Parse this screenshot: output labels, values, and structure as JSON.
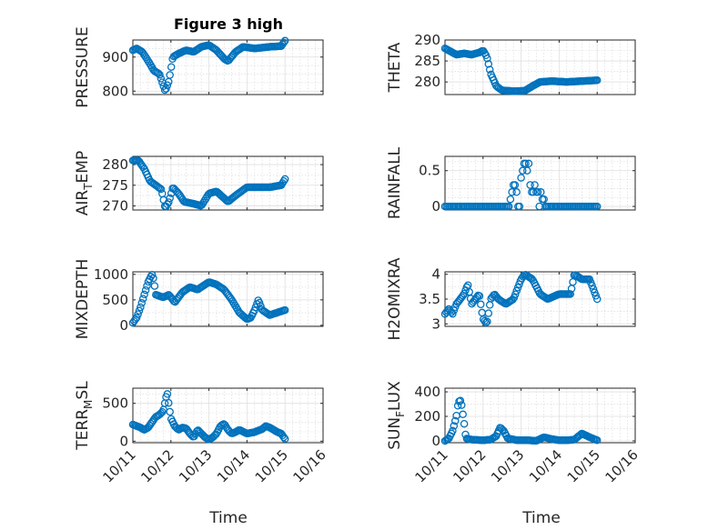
{
  "figure_title": "Figure 3 high",
  "colors": {
    "marker": "#0072bd",
    "axis": "#262626",
    "grid": "#dfdfdf"
  },
  "chart_data": [
    {
      "type": "scatter",
      "ylabel": "PRESSURE",
      "ylim": [
        790,
        950
      ],
      "yticks": [
        800,
        900
      ],
      "ytick_labels": [
        "800",
        "900"
      ],
      "minor_y": [
        825,
        850,
        875,
        925
      ],
      "xlim": [
        0,
        5
      ],
      "xticks": [
        0,
        1,
        2,
        3,
        4,
        5
      ],
      "xtick_labels": [],
      "anchors": [
        [
          0,
          920
        ],
        [
          0.1,
          925
        ],
        [
          0.25,
          915
        ],
        [
          0.45,
          880
        ],
        [
          0.55,
          860
        ],
        [
          0.7,
          850
        ],
        [
          0.85,
          800
        ],
        [
          0.95,
          830
        ],
        [
          1.05,
          900
        ],
        [
          1.2,
          910
        ],
        [
          1.4,
          920
        ],
        [
          1.6,
          915
        ],
        [
          1.8,
          930
        ],
        [
          2.0,
          935
        ],
        [
          2.2,
          920
        ],
        [
          2.4,
          895
        ],
        [
          2.5,
          888
        ],
        [
          2.7,
          915
        ],
        [
          2.9,
          930
        ],
        [
          3.2,
          925
        ],
        [
          3.6,
          930
        ],
        [
          3.9,
          932
        ],
        [
          4.0,
          948
        ]
      ],
      "count": 120
    },
    {
      "type": "scatter",
      "ylabel": "THETA",
      "ylim": [
        277,
        290
      ],
      "yticks": [
        280,
        285,
        290
      ],
      "ytick_labels": [
        "280",
        "285",
        "290"
      ],
      "minor_y": [
        282.5,
        287.5
      ],
      "xlim": [
        0,
        5
      ],
      "xticks": [
        0,
        1,
        2,
        3,
        4,
        5
      ],
      "xtick_labels": [],
      "anchors": [
        [
          0,
          288
        ],
        [
          0.1,
          287.5
        ],
        [
          0.3,
          286.5
        ],
        [
          0.5,
          286.8
        ],
        [
          0.7,
          286.5
        ],
        [
          0.9,
          287
        ],
        [
          1.0,
          287.5
        ],
        [
          1.1,
          286
        ],
        [
          1.2,
          282
        ],
        [
          1.35,
          279
        ],
        [
          1.5,
          278
        ],
        [
          1.8,
          277.8
        ],
        [
          2.1,
          277.9
        ],
        [
          2.3,
          279
        ],
        [
          2.5,
          280
        ],
        [
          2.8,
          280.2
        ],
        [
          3.2,
          280
        ],
        [
          3.6,
          280.2
        ],
        [
          4.0,
          280.4
        ]
      ],
      "count": 120
    },
    {
      "type": "scatter",
      "ylabel": "AIR_T_EMP",
      "ylim": [
        269,
        282
      ],
      "yticks": [
        270,
        275,
        280
      ],
      "ytick_labels": [
        "270",
        "275",
        "280"
      ],
      "minor_y": [
        272.5,
        277.5
      ],
      "xlim": [
        0,
        5
      ],
      "xticks": [
        0,
        1,
        2,
        3,
        4,
        5
      ],
      "xtick_labels": [],
      "anchors": [
        [
          0,
          281
        ],
        [
          0.15,
          281
        ],
        [
          0.3,
          279
        ],
        [
          0.45,
          276
        ],
        [
          0.6,
          275
        ],
        [
          0.75,
          274
        ],
        [
          0.85,
          269.5
        ],
        [
          0.95,
          271
        ],
        [
          1.05,
          274.5
        ],
        [
          1.2,
          273
        ],
        [
          1.35,
          271
        ],
        [
          1.6,
          270.5
        ],
        [
          1.8,
          270
        ],
        [
          2.0,
          273
        ],
        [
          2.2,
          273.5
        ],
        [
          2.5,
          271
        ],
        [
          2.7,
          272.5
        ],
        [
          3.0,
          274.5
        ],
        [
          3.3,
          274.5
        ],
        [
          3.6,
          274.5
        ],
        [
          3.9,
          275
        ],
        [
          4.0,
          276.5
        ]
      ],
      "count": 120
    },
    {
      "type": "scatter",
      "ylabel": "RAINFALL",
      "ylim": [
        -0.05,
        0.7
      ],
      "yticks": [
        0,
        0.5
      ],
      "ytick_labels": [
        "0",
        "0.5"
      ],
      "minor_y": [
        0.125,
        0.25,
        0.375,
        0.625
      ],
      "xlim": [
        0,
        5
      ],
      "xticks": [
        0,
        1,
        2,
        3,
        4,
        5
      ],
      "xtick_labels": [],
      "points": [
        [
          0,
          0
        ],
        [
          0.04,
          0
        ],
        [
          0.08,
          0
        ],
        [
          0.12,
          0
        ],
        [
          0.16,
          0
        ],
        [
          0.2,
          0
        ],
        [
          0.24,
          0
        ],
        [
          0.28,
          0
        ],
        [
          0.32,
          0
        ],
        [
          0.36,
          0
        ],
        [
          0.4,
          0
        ],
        [
          0.44,
          0
        ],
        [
          0.48,
          0
        ],
        [
          0.52,
          0
        ],
        [
          0.56,
          0
        ],
        [
          0.6,
          0
        ],
        [
          0.64,
          0
        ],
        [
          0.68,
          0
        ],
        [
          0.72,
          0
        ],
        [
          0.76,
          0
        ],
        [
          0.8,
          0
        ],
        [
          0.84,
          0
        ],
        [
          0.88,
          0
        ],
        [
          0.92,
          0
        ],
        [
          0.96,
          0
        ],
        [
          1.0,
          0
        ],
        [
          1.04,
          0
        ],
        [
          1.08,
          0
        ],
        [
          1.12,
          0
        ],
        [
          1.16,
          0
        ],
        [
          1.2,
          0
        ],
        [
          1.24,
          0
        ],
        [
          1.28,
          0
        ],
        [
          1.32,
          0
        ],
        [
          1.36,
          0
        ],
        [
          1.4,
          0
        ],
        [
          1.44,
          0
        ],
        [
          1.48,
          0
        ],
        [
          1.52,
          0
        ],
        [
          1.56,
          0
        ],
        [
          1.6,
          0
        ],
        [
          1.64,
          0
        ],
        [
          1.68,
          0
        ],
        [
          1.72,
          0.1
        ],
        [
          1.76,
          0.2
        ],
        [
          1.8,
          0.3
        ],
        [
          1.84,
          0.3
        ],
        [
          1.88,
          0.2
        ],
        [
          1.92,
          0
        ],
        [
          1.96,
          0
        ],
        [
          2.0,
          0.4
        ],
        [
          2.04,
          0.5
        ],
        [
          2.08,
          0.6
        ],
        [
          2.12,
          0.6
        ],
        [
          2.16,
          0.5
        ],
        [
          2.2,
          0.6
        ],
        [
          2.24,
          0.3
        ],
        [
          2.28,
          0.2
        ],
        [
          2.32,
          0.2
        ],
        [
          2.36,
          0.3
        ],
        [
          2.4,
          0.2
        ],
        [
          2.44,
          0.2
        ],
        [
          2.48,
          0
        ],
        [
          2.52,
          0.2
        ],
        [
          2.56,
          0.1
        ],
        [
          2.6,
          0.1
        ],
        [
          2.64,
          0
        ],
        [
          2.68,
          0
        ],
        [
          2.72,
          0
        ],
        [
          2.76,
          0
        ],
        [
          2.8,
          0
        ],
        [
          2.84,
          0
        ],
        [
          2.88,
          0
        ],
        [
          2.92,
          0
        ],
        [
          2.96,
          0
        ],
        [
          3.0,
          0
        ],
        [
          3.04,
          0
        ],
        [
          3.08,
          0
        ],
        [
          3.12,
          0
        ],
        [
          3.16,
          0
        ],
        [
          3.2,
          0
        ],
        [
          3.24,
          0
        ],
        [
          3.28,
          0
        ],
        [
          3.32,
          0
        ],
        [
          3.36,
          0
        ],
        [
          3.4,
          0
        ],
        [
          3.44,
          0
        ],
        [
          3.48,
          0
        ],
        [
          3.52,
          0
        ],
        [
          3.56,
          0
        ],
        [
          3.6,
          0
        ],
        [
          3.64,
          0
        ],
        [
          3.68,
          0
        ],
        [
          3.72,
          0
        ],
        [
          3.76,
          0
        ],
        [
          3.8,
          0
        ],
        [
          3.84,
          0
        ],
        [
          3.88,
          0
        ],
        [
          3.92,
          0
        ],
        [
          3.96,
          0
        ],
        [
          4.0,
          0
        ]
      ]
    },
    {
      "type": "scatter",
      "ylabel": "MIXDEPTH",
      "ylim": [
        -20,
        1050
      ],
      "yticks": [
        0,
        500,
        1000
      ],
      "ytick_labels": [
        "0",
        "500",
        "1000"
      ],
      "minor_y": [
        250,
        750
      ],
      "xlim": [
        0,
        5
      ],
      "xticks": [
        0,
        1,
        2,
        3,
        4,
        5
      ],
      "xtick_labels": [],
      "anchors": [
        [
          0,
          50
        ],
        [
          0.1,
          150
        ],
        [
          0.2,
          350
        ],
        [
          0.3,
          600
        ],
        [
          0.4,
          850
        ],
        [
          0.5,
          1000
        ],
        [
          0.55,
          900
        ],
        [
          0.6,
          600
        ],
        [
          0.8,
          550
        ],
        [
          0.95,
          600
        ],
        [
          1.1,
          450
        ],
        [
          1.3,
          650
        ],
        [
          1.5,
          750
        ],
        [
          1.7,
          700
        ],
        [
          1.9,
          800
        ],
        [
          2.0,
          850
        ],
        [
          2.2,
          800
        ],
        [
          2.4,
          700
        ],
        [
          2.6,
          500
        ],
        [
          2.8,
          250
        ],
        [
          3.0,
          120
        ],
        [
          3.1,
          150
        ],
        [
          3.2,
          300
        ],
        [
          3.3,
          500
        ],
        [
          3.4,
          300
        ],
        [
          3.6,
          200
        ],
        [
          3.8,
          250
        ],
        [
          4.0,
          300
        ]
      ],
      "count": 120
    },
    {
      "type": "scatter",
      "ylabel": "H2OMIXRA",
      "ylim": [
        2.95,
        4.05
      ],
      "yticks": [
        3,
        3.5,
        4
      ],
      "ytick_labels": [
        "3",
        "3.5",
        "4"
      ],
      "minor_y": [
        3.25,
        3.75
      ],
      "xlim": [
        0,
        5
      ],
      "xticks": [
        0,
        1,
        2,
        3,
        4,
        5
      ],
      "xtick_labels": [],
      "anchors": [
        [
          0,
          3.2
        ],
        [
          0.1,
          3.3
        ],
        [
          0.2,
          3.2
        ],
        [
          0.3,
          3.4
        ],
        [
          0.5,
          3.6
        ],
        [
          0.6,
          3.8
        ],
        [
          0.7,
          3.4
        ],
        [
          0.8,
          3.5
        ],
        [
          0.9,
          3.6
        ],
        [
          1.0,
          3.1
        ],
        [
          1.1,
          3.0
        ],
        [
          1.2,
          3.5
        ],
        [
          1.3,
          3.6
        ],
        [
          1.4,
          3.5
        ],
        [
          1.6,
          3.4
        ],
        [
          1.8,
          3.5
        ],
        [
          2.0,
          3.9
        ],
        [
          2.1,
          4.0
        ],
        [
          2.3,
          3.9
        ],
        [
          2.5,
          3.6
        ],
        [
          2.7,
          3.5
        ],
        [
          3.0,
          3.6
        ],
        [
          3.3,
          3.6
        ],
        [
          3.4,
          4.0
        ],
        [
          3.6,
          3.9
        ],
        [
          3.8,
          3.9
        ],
        [
          3.9,
          3.7
        ],
        [
          4.0,
          3.5
        ]
      ],
      "count": 120
    },
    {
      "type": "scatter",
      "ylabel": "TERR_M_SL",
      "ylim": [
        -20,
        700
      ],
      "yticks": [
        0,
        500
      ],
      "ytick_labels": [
        "0",
        "500"
      ],
      "minor_y": [
        125,
        250,
        375,
        625
      ],
      "xlim": [
        0,
        5
      ],
      "xticks": [
        0,
        1,
        2,
        3,
        4,
        5
      ],
      "xtick_labels": [
        "10/11",
        "10/12",
        "10/13",
        "10/14",
        "10/15",
        "10/16"
      ],
      "anchors": [
        [
          0,
          220
        ],
        [
          0.1,
          200
        ],
        [
          0.2,
          180
        ],
        [
          0.3,
          150
        ],
        [
          0.4,
          180
        ],
        [
          0.5,
          250
        ],
        [
          0.6,
          320
        ],
        [
          0.7,
          350
        ],
        [
          0.8,
          400
        ],
        [
          0.9,
          650
        ],
        [
          1.0,
          300
        ],
        [
          1.1,
          200
        ],
        [
          1.2,
          150
        ],
        [
          1.3,
          180
        ],
        [
          1.4,
          170
        ],
        [
          1.5,
          100
        ],
        [
          1.6,
          50
        ],
        [
          1.7,
          150
        ],
        [
          1.8,
          100
        ],
        [
          1.9,
          50
        ],
        [
          2.0,
          20
        ],
        [
          2.1,
          50
        ],
        [
          2.2,
          100
        ],
        [
          2.3,
          200
        ],
        [
          2.4,
          230
        ],
        [
          2.5,
          150
        ],
        [
          2.6,
          100
        ],
        [
          2.7,
          120
        ],
        [
          2.8,
          150
        ],
        [
          3.0,
          100
        ],
        [
          3.2,
          120
        ],
        [
          3.4,
          160
        ],
        [
          3.5,
          200
        ],
        [
          3.6,
          180
        ],
        [
          3.8,
          120
        ],
        [
          3.9,
          100
        ],
        [
          4.0,
          30
        ]
      ],
      "count": 120
    },
    {
      "type": "scatter",
      "ylabel": "SUN_F_LUX",
      "ylim": [
        -15,
        430
      ],
      "yticks": [
        0,
        200,
        400
      ],
      "ytick_labels": [
        "0",
        "200",
        "400"
      ],
      "minor_y": [
        100,
        300
      ],
      "xlim": [
        0,
        5
      ],
      "xticks": [
        0,
        1,
        2,
        3,
        4,
        5
      ],
      "xtick_labels": [
        "10/11",
        "10/12",
        "10/13",
        "10/14",
        "10/15",
        "10/16"
      ],
      "anchors": [
        [
          0,
          0
        ],
        [
          0.1,
          20
        ],
        [
          0.2,
          80
        ],
        [
          0.3,
          200
        ],
        [
          0.35,
          320
        ],
        [
          0.42,
          330
        ],
        [
          0.5,
          150
        ],
        [
          0.55,
          20
        ],
        [
          0.7,
          10
        ],
        [
          1.0,
          5
        ],
        [
          1.2,
          10
        ],
        [
          1.35,
          40
        ],
        [
          1.45,
          110
        ],
        [
          1.55,
          80
        ],
        [
          1.65,
          20
        ],
        [
          1.9,
          5
        ],
        [
          2.2,
          5
        ],
        [
          2.4,
          0
        ],
        [
          2.6,
          30
        ],
        [
          2.8,
          15
        ],
        [
          3.0,
          5
        ],
        [
          3.2,
          5
        ],
        [
          3.4,
          10
        ],
        [
          3.6,
          60
        ],
        [
          3.8,
          30
        ],
        [
          4.0,
          5
        ]
      ],
      "count": 120
    }
  ],
  "xlabels": [
    "Time",
    "Time"
  ]
}
